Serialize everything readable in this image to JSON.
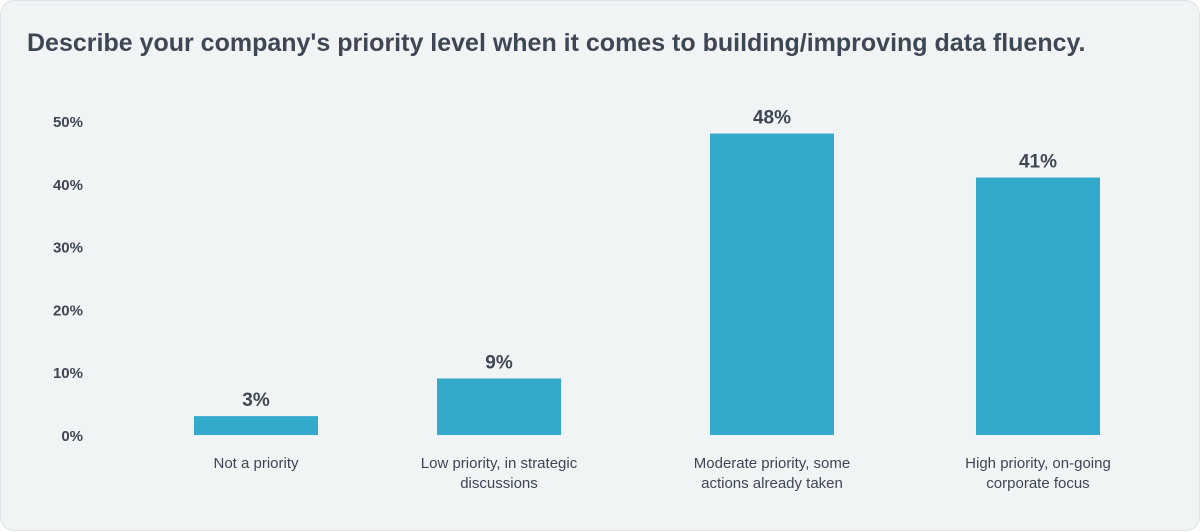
{
  "chart_data": {
    "type": "bar",
    "title": "Describe your company's priority level when it comes to building/improving data fluency.",
    "categories": [
      [
        "Not a priority"
      ],
      [
        "Low priority, in strategic",
        "discussions"
      ],
      [
        "Moderate priority, some",
        "actions already taken"
      ],
      [
        "High priority, on-going",
        "corporate focus"
      ]
    ],
    "values": [
      3,
      9,
      48,
      41
    ],
    "data_labels": [
      "3%",
      "9%",
      "48%",
      "41%"
    ],
    "y_ticks": [
      0,
      10,
      20,
      30,
      40,
      50
    ],
    "y_tick_labels": [
      "0%",
      "10%",
      "20%",
      "30%",
      "40%",
      "50%"
    ],
    "ylim": [
      0,
      50
    ],
    "grid": false,
    "legend": "none",
    "bar_color": "#33a9cc",
    "text_color": "#3f4654"
  }
}
